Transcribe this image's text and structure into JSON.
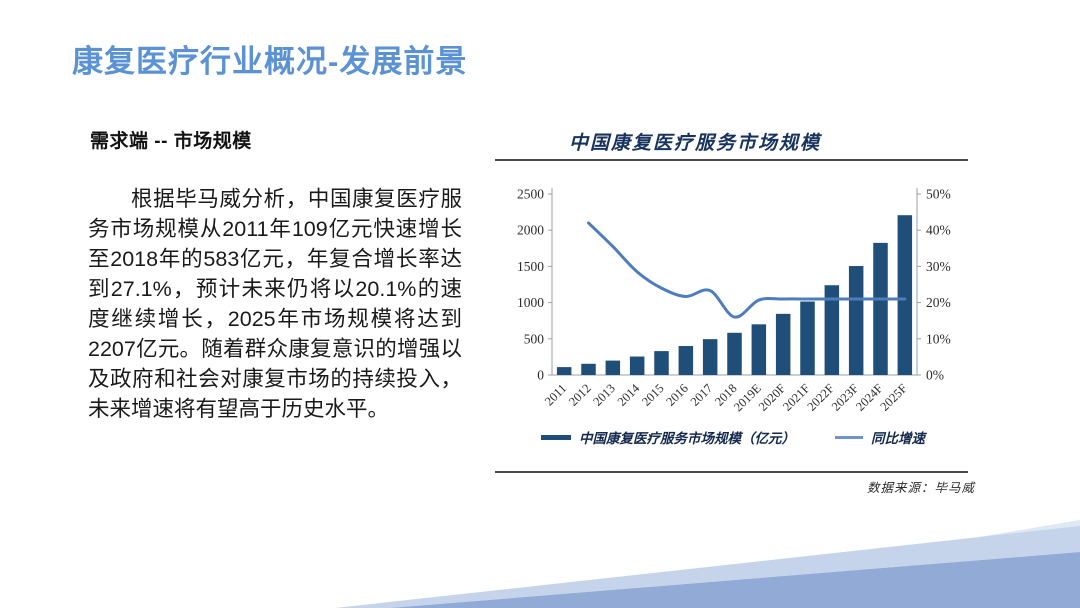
{
  "slide": {
    "title": "康复医疗行业概况-发展前景",
    "section_heading": "需求端 -- 市场规模",
    "body_paragraph": "根据毕马威分析，中国康复医疗服务市场规模从2011年109亿元快速增长至2018年的583亿元，年复合增长率达到27.1%，预计未来仍将以20.1%的速度继续增长，2025年市场规模将达到2207亿元。随着群众康复意识的增强以及政府和社会对康复市场的持续投入，未来增速将有望高于历史水平。",
    "source_note": "数据来源：毕马威"
  },
  "colors": {
    "title_blue": "#5B92D4",
    "bar_navy": "#1F4E79",
    "line_blue": "#4E7DBB",
    "chart_title_navy": "#17335E",
    "axis_gray": "#9aa0a6",
    "axis_text": "#2b2b2b",
    "wedge_lightest": "#DEE7F4",
    "wedge_light": "#C5D4EB",
    "wedge_medium": "#92ABD6"
  },
  "chart_data": {
    "type": "bar",
    "subtype": "bar-line-combo",
    "title": "中国康复医疗服务市场规模",
    "categories": [
      "2011",
      "2012",
      "2013",
      "2014",
      "2015",
      "2016",
      "2017",
      "2018",
      "2019E",
      "2020F",
      "2021F",
      "2022F",
      "2023F",
      "2024F",
      "2025F"
    ],
    "series": [
      {
        "name": "中国康复医疗服务市场规模（亿元）",
        "type": "bar",
        "axis": "left",
        "values": [
          109,
          155,
          199,
          255,
          330,
          400,
          495,
          583,
          700,
          845,
          1015,
          1240,
          1505,
          1825,
          2207
        ]
      },
      {
        "name": "同比增速",
        "type": "line",
        "axis": "right",
        "values": [
          null,
          42,
          35.5,
          28.5,
          24,
          21.7,
          23.3,
          16,
          20.7,
          21,
          21,
          21,
          21,
          21,
          21
        ]
      }
    ],
    "left_axis": {
      "min": 0,
      "max": 2500,
      "step": 500,
      "ticks": [
        "0",
        "500",
        "1000",
        "1500",
        "2000",
        "2500"
      ]
    },
    "right_axis": {
      "min": 0,
      "max": 50,
      "step": 10,
      "ticks": [
        "0%",
        "10%",
        "20%",
        "30%",
        "40%",
        "50%"
      ]
    },
    "legend_position": "bottom",
    "grid": false
  }
}
